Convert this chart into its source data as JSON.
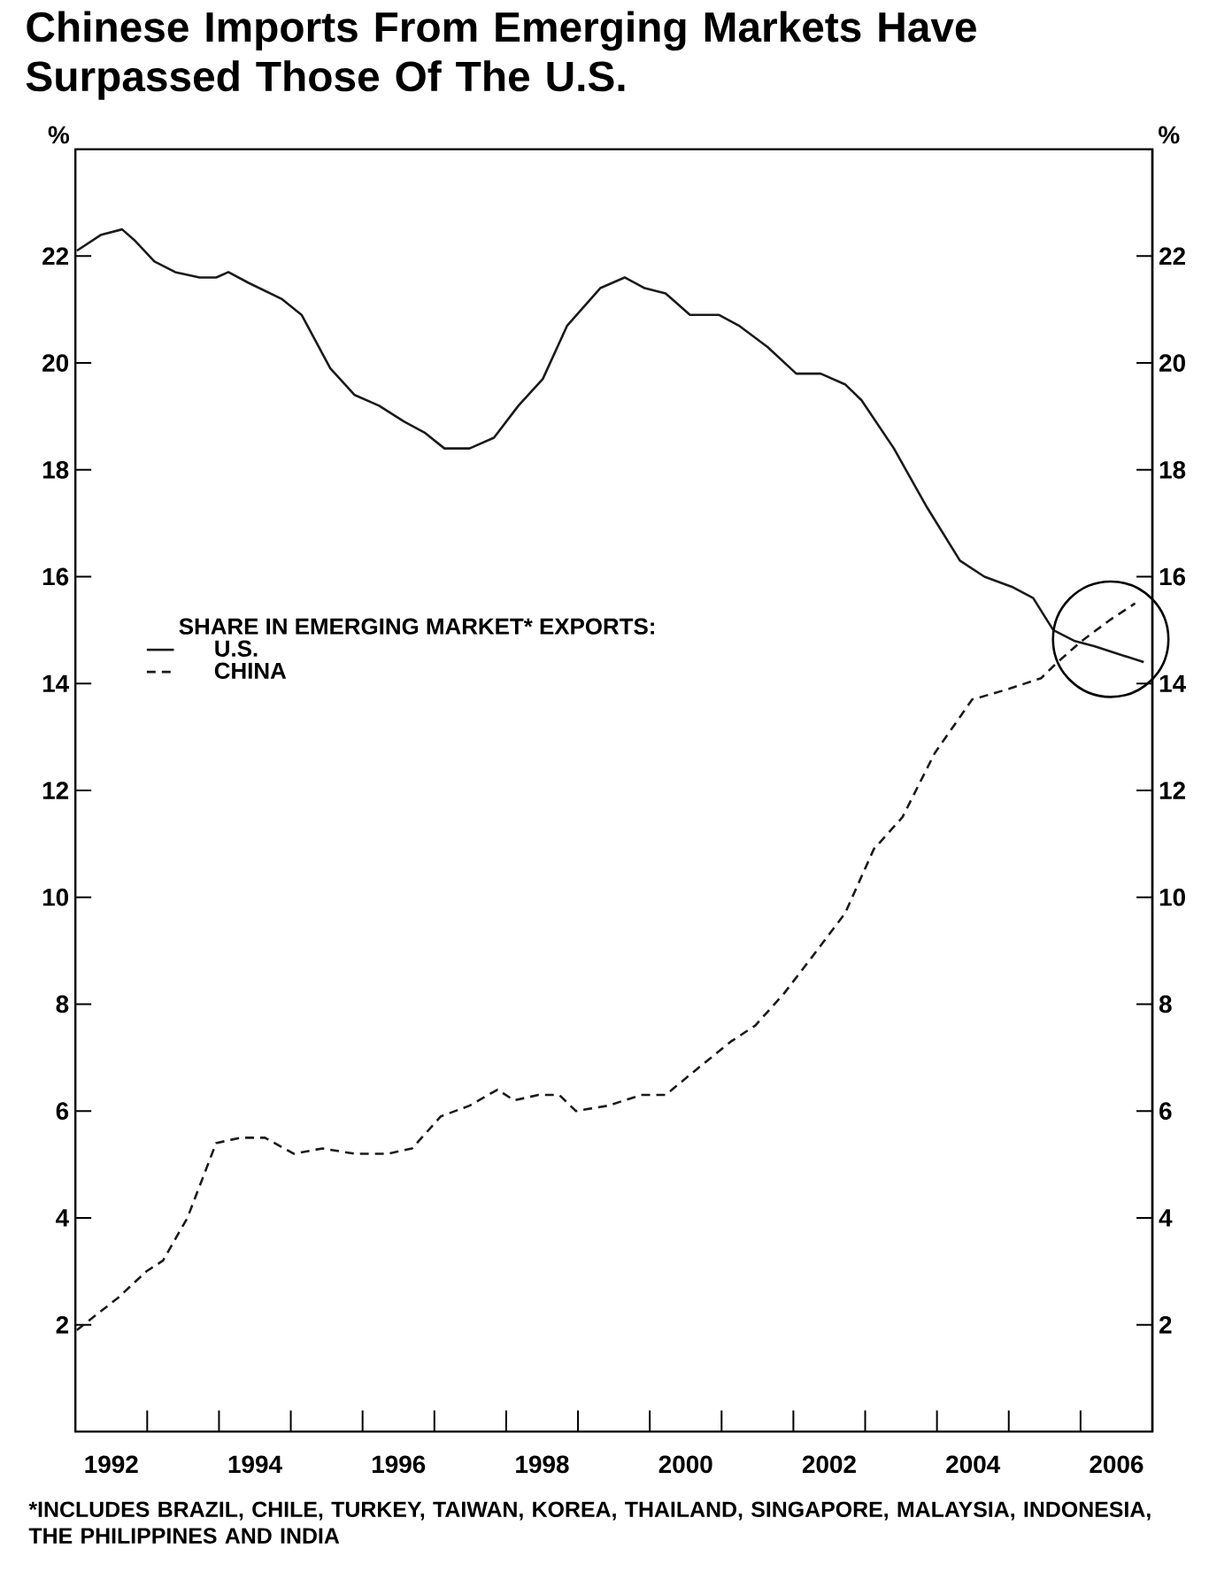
{
  "chart_data": {
    "type": "line",
    "title": "Chinese Imports From Emerging Markets Have Surpassed Those Of The U.S.",
    "ylabel": "%",
    "y2label": "%",
    "legend_title": "SHARE IN EMERGING MARKET* EXPORTS:",
    "legend": "left",
    "annotations": [
      "*INCLUDES BRAZIL, CHILE, TURKEY, TAIWAN, KOREA, THAILAND, SINGAPORE, MALAYSIA, INDONESIA, THE PHILIPPINES AND INDIA"
    ],
    "xlim": [
      1992,
      2007
    ],
    "xticks": [
      {
        "value": 1992.5,
        "label": "1992"
      },
      {
        "value": 1994.5,
        "label": "1994"
      },
      {
        "value": 1996.5,
        "label": "1996"
      },
      {
        "value": 1998.5,
        "label": "1998"
      },
      {
        "value": 2000.5,
        "label": "2000"
      },
      {
        "value": 2002.5,
        "label": "2002"
      },
      {
        "value": 2004.5,
        "label": "2004"
      },
      {
        "value": 2006.5,
        "label": "2006"
      },
      {
        "value": 1993,
        "label": null
      },
      {
        "value": 1994,
        "label": null
      },
      {
        "value": 1995,
        "label": null
      },
      {
        "value": 1996,
        "label": null
      },
      {
        "value": 1997,
        "label": null
      },
      {
        "value": 1998,
        "label": null
      },
      {
        "value": 1999,
        "label": null
      },
      {
        "value": 2000,
        "label": null
      },
      {
        "value": 2001,
        "label": null
      },
      {
        "value": 2002,
        "label": null
      },
      {
        "value": 2003,
        "label": null
      },
      {
        "value": 2004,
        "label": null
      },
      {
        "value": 2005,
        "label": null
      },
      {
        "value": 2006,
        "label": null
      }
    ],
    "ylim": [
      0,
      24
    ],
    "yticks": [
      2,
      4,
      6,
      8,
      10,
      12,
      14,
      16,
      18,
      20,
      22
    ],
    "y2lim": [
      0,
      24
    ],
    "y2ticks": [
      2,
      4,
      6,
      8,
      10,
      12,
      14,
      16,
      18,
      20,
      22
    ],
    "series": [
      {
        "name": "U.S.",
        "color": "#1a1a1a",
        "line_style": "solid",
        "x": [
          1992.02,
          1992.36,
          1992.65,
          1992.82,
          1993.1,
          1993.39,
          1993.73,
          1993.96,
          1994.13,
          1994.41,
          1994.87,
          1995.15,
          1995.55,
          1995.89,
          1996.23,
          1996.58,
          1996.86,
          1997.14,
          1997.49,
          1997.83,
          1998.17,
          1998.51,
          1998.85,
          1999.31,
          1999.65,
          1999.93,
          2000.22,
          2000.56,
          2000.96,
          2001.24,
          2001.64,
          2002.04,
          2002.38,
          2002.72,
          2002.95,
          2003.4,
          2003.86,
          2004.32,
          2004.66,
          2005.06,
          2005.34,
          2005.62,
          2005.91,
          2006.19,
          2006.65,
          2006.88
        ],
        "values": [
          22.1,
          22.4,
          22.5,
          22.3,
          21.9,
          21.7,
          21.6,
          21.6,
          21.7,
          21.5,
          21.2,
          20.9,
          19.9,
          19.4,
          19.2,
          18.9,
          18.7,
          18.4,
          18.4,
          18.6,
          19.2,
          19.7,
          20.7,
          21.4,
          21.6,
          21.4,
          21.3,
          20.9,
          20.9,
          20.7,
          20.3,
          19.8,
          19.8,
          19.6,
          19.3,
          18.4,
          17.3,
          16.3,
          16.0,
          15.8,
          15.6,
          15.0,
          14.8,
          14.7,
          14.5,
          14.4
        ]
      },
      {
        "name": "CHINA",
        "color": "#1a1a1a",
        "line_style": "dashed",
        "x": [
          1992.02,
          1992.59,
          1992.99,
          1993.22,
          1993.56,
          1993.96,
          1994.3,
          1994.64,
          1995.04,
          1995.44,
          1995.89,
          1996.35,
          1996.69,
          1997.09,
          1997.49,
          1997.88,
          1998.11,
          1998.45,
          1998.74,
          1998.97,
          1999.42,
          1999.88,
          2000.22,
          2000.67,
          2001.13,
          2001.47,
          2001.87,
          2002.27,
          2002.72,
          2003.12,
          2003.52,
          2003.97,
          2004.49,
          2005.0,
          2005.45,
          2005.68,
          2006.02,
          2006.42,
          2006.76
        ],
        "values": [
          1.9,
          2.5,
          3.0,
          3.2,
          4.0,
          5.4,
          5.5,
          5.5,
          5.2,
          5.3,
          5.2,
          5.2,
          5.3,
          5.9,
          6.1,
          6.4,
          6.2,
          6.3,
          6.3,
          6.0,
          6.1,
          6.3,
          6.3,
          6.8,
          7.3,
          7.6,
          8.2,
          8.9,
          9.7,
          10.9,
          11.5,
          12.7,
          13.7,
          13.9,
          14.1,
          14.4,
          14.8,
          15.2,
          15.5
        ]
      }
    ]
  }
}
